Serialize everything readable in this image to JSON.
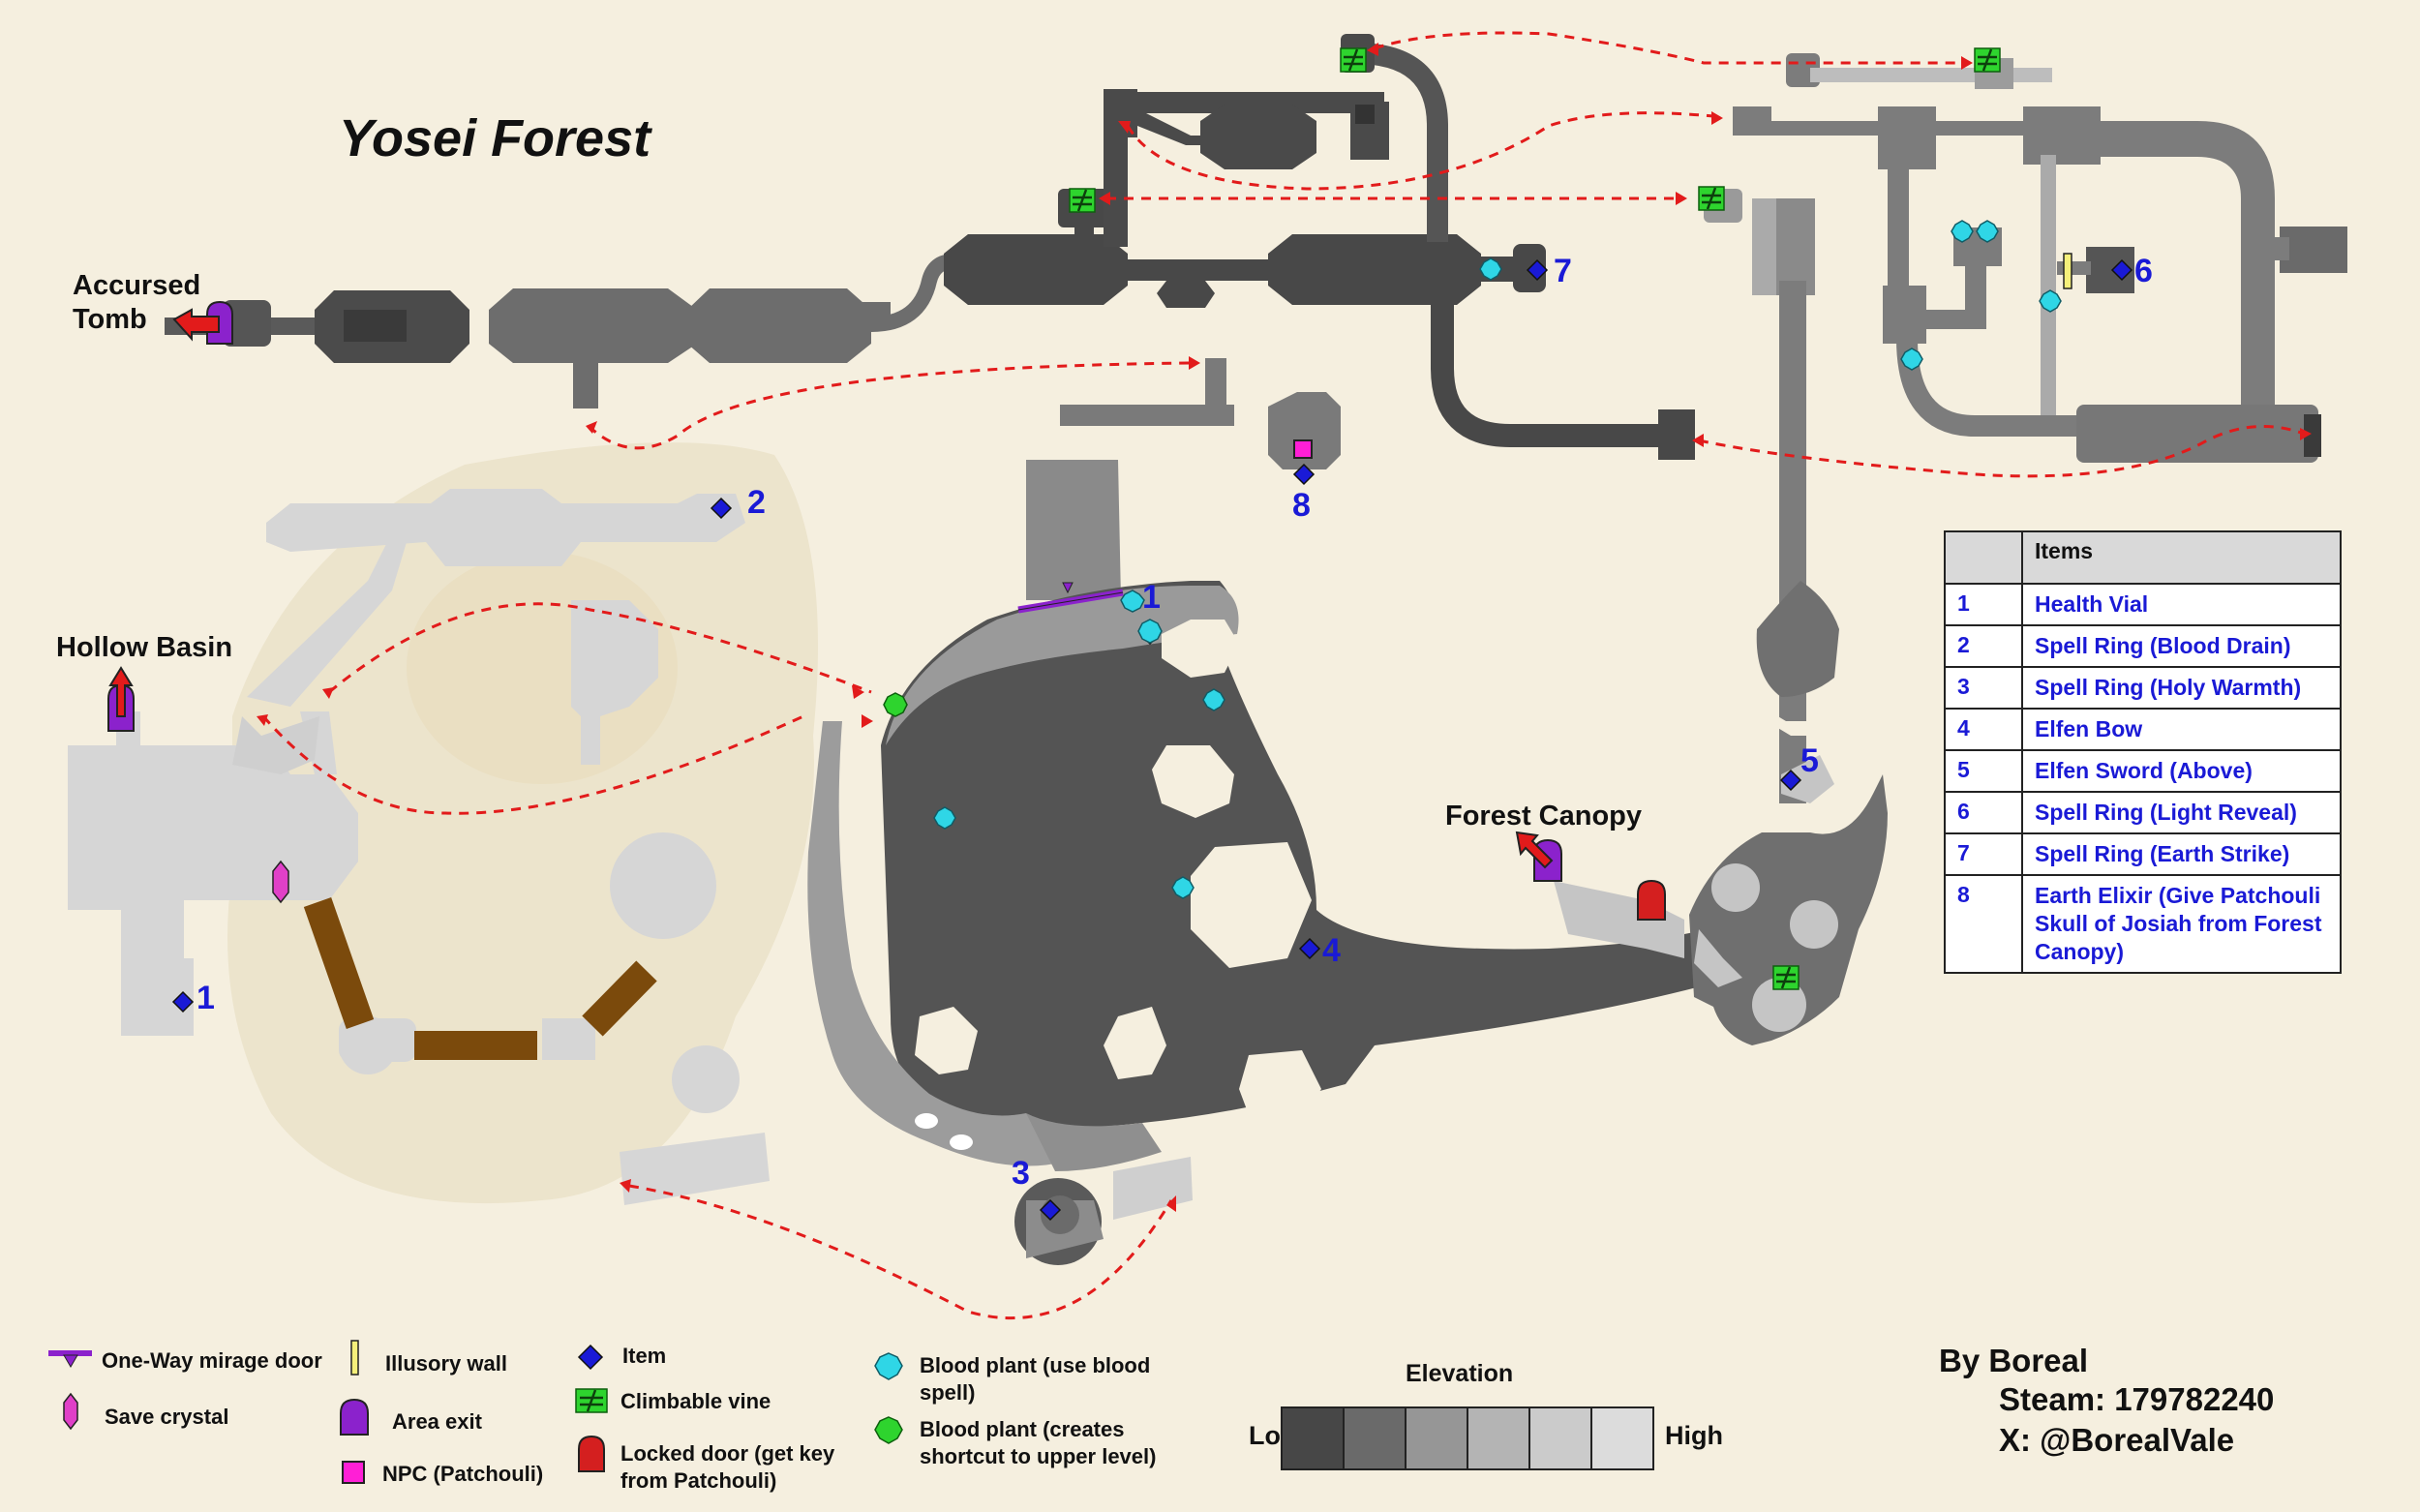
{
  "title": "Yosei Forest",
  "areas": {
    "accursed_tomb": "Accursed\nTomb",
    "hollow_basin": "Hollow Basin",
    "forest_canopy": "Forest Canopy"
  },
  "map_markers": [
    "1",
    "2",
    "3",
    "4",
    "5",
    "6",
    "7",
    "8",
    "1"
  ],
  "items_table": {
    "header": "Items",
    "rows": [
      {
        "n": "1",
        "item": "Health Vial"
      },
      {
        "n": "2",
        "item": "Spell Ring (Blood Drain)"
      },
      {
        "n": "3",
        "item": "Spell Ring (Holy Warmth)"
      },
      {
        "n": "4",
        "item": "Elfen Bow"
      },
      {
        "n": "5",
        "item": "Elfen Sword (Above)"
      },
      {
        "n": "6",
        "item": "Spell Ring (Light Reveal)"
      },
      {
        "n": "7",
        "item": "Spell Ring (Earth Strike)"
      },
      {
        "n": "8",
        "item": "Earth Elixir (Give Patchouli Skull of Josiah from Forest Canopy)"
      }
    ]
  },
  "legend": {
    "one_way": "One-Way mirage door",
    "save": "Save crystal",
    "illusory": "Illusory wall",
    "exit": "Area exit",
    "npc": "NPC (Patchouli)",
    "item": "Item",
    "vine": "Climbable vine",
    "locked": "Locked door (get key\nfrom Patchouli)",
    "blood_spell": "Blood plant (use blood\nspell)",
    "blood_shortcut": "Blood plant (creates\nshortcut to upper level)"
  },
  "elevation": {
    "title": "Elevation",
    "low": "Low",
    "high": "High",
    "colors": [
      "#474747",
      "#6a6a6a",
      "#969696",
      "#b4b4b4",
      "#cbcbcb",
      "#dcdcdc"
    ]
  },
  "credit": {
    "by": "By Boreal",
    "steam": "Steam: 179782240",
    "x": "X: @BorealVale"
  },
  "colors": {
    "background": "#f5efdf",
    "dark": "#4a4a4a",
    "mid": "#6e6e6e",
    "light": "#c8c8c8",
    "path_arrow": "#e21b1b",
    "item": "#1a1ad6",
    "blood_plant": "#2fd6e6",
    "shortcut_plant": "#2ed42e",
    "exit": "#8b22cc"
  }
}
